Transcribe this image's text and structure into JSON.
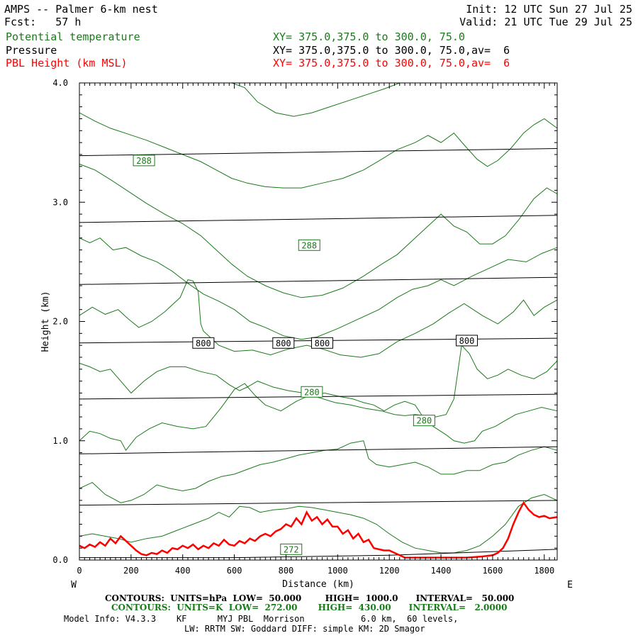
{
  "header": {
    "left_line1": "AMPS -- Palmer 6-km nest",
    "left_line2": "Fcst:   57 h",
    "right_line1": "Init: 12 UTC Sun 27 Jul 25",
    "right_line2": "Valid: 21 UTC Tue 29 Jul 25",
    "fields": [
      {
        "name": "Potential temperature",
        "xy": "XY= 375.0,375.0 to 300.0, 75.0",
        "color": "#1a7a1a"
      },
      {
        "name": "Pressure",
        "xy": "XY= 375.0,375.0 to 300.0, 75.0,av=  6",
        "color": "#000000"
      },
      {
        "name": "PBL Height (km MSL)",
        "xy": "XY= 375.0,375.0 to 300.0, 75.0,av=  6",
        "color": "#ff0000"
      }
    ]
  },
  "chart_data": {
    "type": "line",
    "xlabel": "Distance (km)",
    "ylabel": "Height (km)",
    "xlim": [
      0,
      1850
    ],
    "ylim": [
      0,
      4.0
    ],
    "x_ticks": [
      0,
      200,
      400,
      600,
      800,
      1000,
      1200,
      1400,
      1600,
      1800
    ],
    "y_ticks": [
      0.0,
      1.0,
      2.0,
      3.0,
      4.0
    ],
    "y_tick_labels": [
      "0.0",
      "1.0",
      "2.0",
      "3.0",
      "4.0"
    ],
    "left_end": "W",
    "right_end": "E",
    "pressure_contours": {
      "color": "#000000",
      "lines": [
        {
          "x": [
            0,
            1850
          ],
          "y": [
            3.39,
            3.45
          ]
        },
        {
          "x": [
            0,
            1850
          ],
          "y": [
            2.83,
            2.89
          ]
        },
        {
          "x": [
            0,
            1850
          ],
          "y": [
            2.31,
            2.37
          ]
        },
        {
          "x": [
            0,
            1850
          ],
          "y": [
            1.82,
            1.86
          ]
        },
        {
          "x": [
            0,
            1850
          ],
          "y": [
            1.35,
            1.39
          ]
        },
        {
          "x": [
            0,
            1850
          ],
          "y": [
            0.89,
            0.95
          ]
        },
        {
          "x": [
            0,
            1850
          ],
          "y": [
            0.46,
            0.5
          ]
        },
        {
          "x": [
            0,
            600,
            1200,
            1850
          ],
          "y": [
            0.02,
            0.02,
            0.04,
            0.09
          ]
        }
      ],
      "labels": [
        {
          "text": "800",
          "x": 480,
          "y": 1.82
        },
        {
          "text": "800",
          "x": 790,
          "y": 1.82
        },
        {
          "text": "800",
          "x": 940,
          "y": 1.82
        },
        {
          "text": "800",
          "x": 1500,
          "y": 1.84
        }
      ]
    },
    "theta_contours": {
      "color": "#1a7a1a",
      "lines": [
        {
          "x": [
            0,
            60,
            120,
            190,
            260,
            330,
            400,
            470,
            530,
            590,
            640,
            690,
            760,
            830,
            900,
            970,
            1040,
            1110,
            1180,
            1240,
            1290,
            1330,
            1350
          ],
          "y": [
            4.0,
            4.0,
            4.0,
            4.0,
            4.0,
            4.0,
            4.0,
            4.0,
            4.0,
            4.0,
            3.96,
            3.84,
            3.75,
            3.72,
            3.75,
            3.8,
            3.85,
            3.9,
            3.95,
            4.0,
            4.0,
            4.0,
            4.0
          ]
        },
        {
          "x": [
            0,
            60,
            120,
            190,
            260,
            330,
            400,
            470,
            530,
            590,
            650,
            720,
            790,
            860,
            940,
            1020,
            1100,
            1170,
            1230,
            1300,
            1350,
            1400,
            1450,
            1490,
            1540,
            1580,
            1620,
            1670,
            1720,
            1760,
            1800,
            1850
          ],
          "y": [
            3.75,
            3.68,
            3.62,
            3.57,
            3.52,
            3.46,
            3.4,
            3.34,
            3.27,
            3.2,
            3.16,
            3.13,
            3.12,
            3.12,
            3.16,
            3.2,
            3.27,
            3.36,
            3.44,
            3.5,
            3.56,
            3.5,
            3.58,
            3.48,
            3.36,
            3.3,
            3.35,
            3.45,
            3.58,
            3.65,
            3.7,
            3.62
          ]
        },
        {
          "x": [
            0,
            60,
            120,
            190,
            260,
            330,
            400,
            470,
            530,
            590,
            650,
            720,
            790,
            860,
            940,
            1020,
            1100,
            1170,
            1230,
            1300,
            1350,
            1400,
            1450,
            1500,
            1550,
            1600,
            1650,
            1700,
            1760,
            1810,
            1850
          ],
          "y": [
            3.32,
            3.27,
            3.19,
            3.09,
            2.99,
            2.9,
            2.82,
            2.72,
            2.6,
            2.48,
            2.38,
            2.3,
            2.24,
            2.2,
            2.22,
            2.28,
            2.38,
            2.48,
            2.56,
            2.7,
            2.8,
            2.9,
            2.8,
            2.75,
            2.65,
            2.65,
            2.72,
            2.85,
            3.03,
            3.12,
            3.07
          ]
        },
        {
          "x": [
            0,
            40,
            80,
            130,
            180,
            240,
            300,
            360,
            420,
            480,
            540,
            600,
            660,
            720,
            790,
            860,
            920,
            1000,
            1080,
            1160,
            1230,
            1290,
            1350,
            1400,
            1450,
            1520,
            1590,
            1660,
            1730,
            1790,
            1850
          ],
          "y": [
            2.7,
            2.66,
            2.7,
            2.6,
            2.62,
            2.55,
            2.5,
            2.42,
            2.32,
            2.23,
            2.17,
            2.1,
            2.0,
            1.95,
            1.88,
            1.85,
            1.87,
            1.94,
            2.02,
            2.1,
            2.2,
            2.27,
            2.3,
            2.35,
            2.3,
            2.38,
            2.45,
            2.52,
            2.5,
            2.57,
            2.62
          ]
        },
        {
          "x": [
            0,
            50,
            100,
            150,
            190,
            230,
            280,
            330,
            390,
            420,
            440,
            460,
            470,
            480,
            540,
            600,
            670,
            740,
            810,
            880,
            940,
            1010,
            1090,
            1160,
            1230,
            1300,
            1370,
            1430,
            1490,
            1560,
            1620,
            1680,
            1720,
            1760,
            1800,
            1850
          ],
          "y": [
            2.05,
            2.12,
            2.06,
            2.1,
            2.02,
            1.95,
            2.0,
            2.08,
            2.2,
            2.35,
            2.34,
            2.25,
            1.98,
            1.92,
            1.8,
            1.75,
            1.76,
            1.72,
            1.77,
            1.8,
            1.77,
            1.72,
            1.7,
            1.73,
            1.83,
            1.9,
            1.98,
            2.07,
            2.15,
            2.05,
            1.98,
            2.08,
            2.18,
            2.05,
            2.12,
            2.18
          ]
        },
        {
          "x": [
            0,
            40,
            80,
            120,
            160,
            200,
            250,
            300,
            350,
            410,
            470,
            530,
            580,
            620,
            650,
            690,
            750,
            810,
            870,
            930,
            990,
            1050,
            1110,
            1170,
            1220,
            1260,
            1300,
            1340,
            1380,
            1420,
            1450,
            1480,
            1510,
            1540,
            1580,
            1620,
            1660,
            1710,
            1760,
            1810,
            1850
          ],
          "y": [
            1.65,
            1.62,
            1.58,
            1.6,
            1.5,
            1.4,
            1.5,
            1.58,
            1.62,
            1.62,
            1.58,
            1.55,
            1.47,
            1.42,
            1.45,
            1.5,
            1.45,
            1.42,
            1.4,
            1.36,
            1.32,
            1.3,
            1.27,
            1.25,
            1.22,
            1.21,
            1.22,
            1.21,
            1.2,
            1.22,
            1.35,
            1.8,
            1.73,
            1.6,
            1.52,
            1.55,
            1.6,
            1.55,
            1.52,
            1.58,
            1.67
          ]
        },
        {
          "x": [
            0,
            40,
            80,
            120,
            160,
            180,
            220,
            270,
            320,
            380,
            440,
            490,
            550,
            600,
            640,
            680,
            720,
            780,
            840,
            890,
            950,
            1010,
            1060,
            1100,
            1140,
            1180,
            1220,
            1260,
            1300,
            1330,
            1370,
            1420,
            1450,
            1490,
            1530,
            1560,
            1610,
            1650,
            1690,
            1740,
            1790,
            1850
          ],
          "y": [
            1.0,
            1.08,
            1.06,
            1.02,
            1.0,
            0.92,
            1.03,
            1.1,
            1.15,
            1.12,
            1.1,
            1.12,
            1.28,
            1.43,
            1.48,
            1.38,
            1.3,
            1.25,
            1.33,
            1.38,
            1.4,
            1.37,
            1.35,
            1.32,
            1.3,
            1.25,
            1.3,
            1.33,
            1.3,
            1.2,
            1.12,
            1.05,
            1.0,
            0.98,
            1.0,
            1.08,
            1.12,
            1.17,
            1.22,
            1.25,
            1.28,
            1.25
          ]
        },
        {
          "x": [
            0,
            50,
            100,
            160,
            200,
            250,
            300,
            350,
            400,
            450,
            500,
            550,
            600,
            650,
            700,
            750,
            800,
            850,
            900,
            950,
            1000,
            1050,
            1100,
            1120,
            1150,
            1200,
            1250,
            1300,
            1350,
            1400,
            1450,
            1500,
            1550,
            1600,
            1650,
            1700,
            1750,
            1800,
            1850
          ],
          "y": [
            0.6,
            0.65,
            0.55,
            0.48,
            0.5,
            0.55,
            0.63,
            0.6,
            0.58,
            0.6,
            0.66,
            0.7,
            0.72,
            0.76,
            0.8,
            0.82,
            0.85,
            0.88,
            0.9,
            0.92,
            0.93,
            0.98,
            1.0,
            0.85,
            0.8,
            0.78,
            0.8,
            0.82,
            0.78,
            0.72,
            0.72,
            0.75,
            0.75,
            0.8,
            0.82,
            0.88,
            0.92,
            0.95,
            0.92
          ]
        },
        {
          "x": [
            0,
            50,
            100,
            150,
            200,
            260,
            320,
            380,
            440,
            500,
            540,
            580,
            620,
            660,
            700,
            750,
            800,
            850,
            900,
            950,
            1000,
            1050,
            1100,
            1150,
            1200,
            1250,
            1300,
            1350,
            1400,
            1450,
            1500,
            1550,
            1600,
            1650,
            1700,
            1750,
            1800,
            1850
          ],
          "y": [
            0.2,
            0.22,
            0.2,
            0.18,
            0.15,
            0.18,
            0.2,
            0.25,
            0.3,
            0.35,
            0.4,
            0.36,
            0.45,
            0.44,
            0.4,
            0.42,
            0.43,
            0.45,
            0.44,
            0.42,
            0.4,
            0.38,
            0.35,
            0.3,
            0.22,
            0.15,
            0.1,
            0.08,
            0.06,
            0.06,
            0.08,
            0.12,
            0.2,
            0.3,
            0.45,
            0.52,
            0.55,
            0.5
          ]
        }
      ],
      "labels": [
        {
          "text": "288",
          "x": 250,
          "y": 3.35
        },
        {
          "text": "288",
          "x": 890,
          "y": 2.64
        },
        {
          "text": "280",
          "x": 900,
          "y": 1.41
        },
        {
          "text": "280",
          "x": 1335,
          "y": 1.17
        },
        {
          "text": "272",
          "x": 820,
          "y": 0.09
        }
      ]
    },
    "pbl_height": {
      "color": "#ff0000",
      "x": [
        0,
        20,
        40,
        60,
        80,
        100,
        120,
        140,
        160,
        180,
        200,
        220,
        240,
        260,
        280,
        300,
        320,
        340,
        360,
        380,
        400,
        420,
        440,
        460,
        480,
        500,
        520,
        540,
        560,
        580,
        600,
        620,
        640,
        660,
        680,
        700,
        720,
        740,
        760,
        780,
        800,
        820,
        840,
        860,
        880,
        900,
        920,
        940,
        960,
        980,
        1000,
        1020,
        1040,
        1060,
        1080,
        1100,
        1120,
        1140,
        1160,
        1180,
        1200,
        1220,
        1240,
        1260,
        1300,
        1400,
        1500,
        1560,
        1600,
        1620,
        1640,
        1660,
        1680,
        1700,
        1720,
        1740,
        1760,
        1780,
        1800,
        1820,
        1850
      ],
      "y": [
        0.12,
        0.1,
        0.13,
        0.11,
        0.15,
        0.12,
        0.18,
        0.14,
        0.2,
        0.16,
        0.12,
        0.08,
        0.05,
        0.04,
        0.06,
        0.05,
        0.08,
        0.06,
        0.1,
        0.09,
        0.12,
        0.1,
        0.13,
        0.09,
        0.12,
        0.1,
        0.14,
        0.12,
        0.17,
        0.13,
        0.12,
        0.16,
        0.14,
        0.18,
        0.16,
        0.2,
        0.22,
        0.2,
        0.24,
        0.26,
        0.3,
        0.28,
        0.35,
        0.3,
        0.4,
        0.33,
        0.36,
        0.3,
        0.34,
        0.28,
        0.28,
        0.22,
        0.25,
        0.18,
        0.22,
        0.15,
        0.17,
        0.1,
        0.09,
        0.08,
        0.08,
        0.06,
        0.04,
        0.02,
        0.02,
        0.02,
        0.02,
        0.03,
        0.04,
        0.06,
        0.1,
        0.18,
        0.3,
        0.4,
        0.48,
        0.42,
        0.38,
        0.36,
        0.37,
        0.35,
        0.36
      ]
    }
  },
  "footer": {
    "line1": "CONTOURS:  UNITS=hPa  LOW=  50.000        HIGH=  1000.0      INTERVAL=   50.000",
    "line2": "CONTOURS:  UNITS=K  LOW=  272.00       HIGH=  430.00      INTERVAL=   2.0000",
    "line3": "Model Info: V4.3.3    KF      MYJ PBL  Morrison           6.0 km,  60 levels,",
    "line4": "LW: RRTM SW: Goddard DIFF: simple KM: 2D Smagor"
  }
}
